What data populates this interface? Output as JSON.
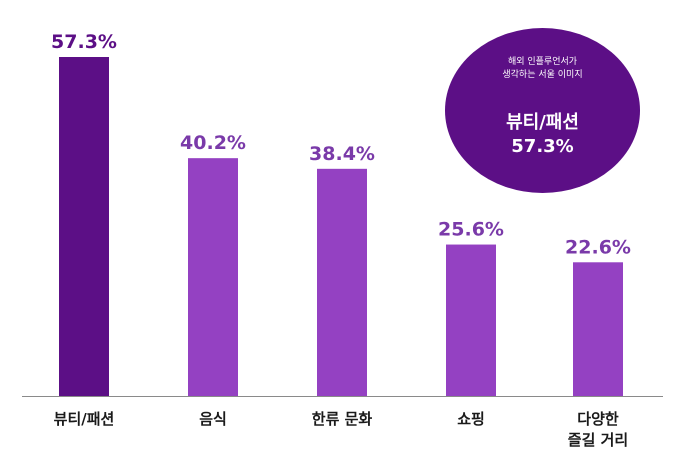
{
  "colors": {
    "highlight_bar": "#5c0f86",
    "bar": "#9441c2",
    "value_label": "#7a3aa9",
    "bubble": "#5c0f86",
    "axis": "#8a8a8a",
    "text": "#1a1a1a"
  },
  "callout": {
    "subtitle_line1": "해외 인플루언서가",
    "subtitle_line2": "생각하는 서울 이미지",
    "category": "뷰티/패션",
    "value": "57.3%"
  },
  "chart_data": {
    "type": "bar",
    "categories": [
      [
        "뷰티/패션"
      ],
      [
        "음식"
      ],
      [
        "한류 문화"
      ],
      [
        "쇼핑"
      ],
      [
        "다양한",
        "즐길 거리"
      ]
    ],
    "values": [
      57.3,
      40.2,
      38.4,
      25.6,
      22.6
    ],
    "value_labels": [
      "57.3%",
      "40.2%",
      "38.4%",
      "25.6%",
      "22.6%"
    ],
    "highlight_index": 0,
    "ylim": [
      0,
      57.3
    ],
    "grid": false,
    "legend": "none"
  }
}
